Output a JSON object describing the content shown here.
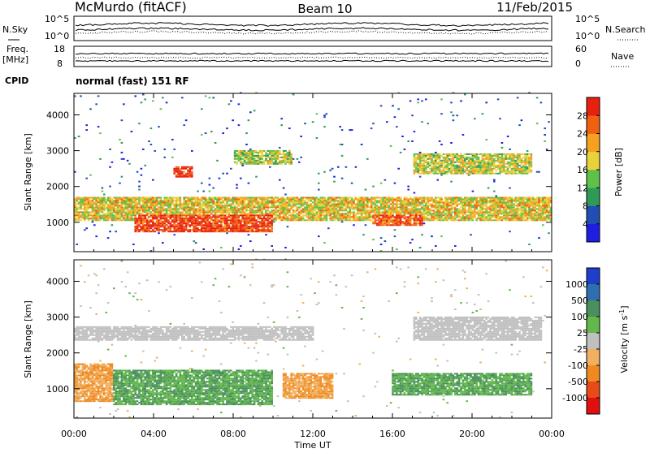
{
  "header": {
    "title": "McMurdo (fitACF)",
    "beam": "Beam 10",
    "date": "11/Feb/2015"
  },
  "top_labels": {
    "n_sky": "N.Sky",
    "n_search": "N.Search",
    "freq": "Freq.",
    "freq_unit": "[MHz]",
    "nave": "Nave",
    "cpid": "CPID",
    "cpid_value": "normal (fast) 151 RF",
    "noise_left_ticks": [
      "10^5",
      "10^0"
    ],
    "noise_right_ticks": [
      "10^5",
      "10^0"
    ],
    "freq_ticks": [
      "18",
      "8"
    ],
    "nave_ticks": [
      "60",
      "0"
    ]
  },
  "colors": {
    "power_scale": [
      "#1e1ee0",
      "#1f4fb4",
      "#2f9a58",
      "#5ec24a",
      "#e8d23a",
      "#f5a020",
      "#f06010",
      "#e82010"
    ],
    "velocity_scale": [
      "#1e3fcc",
      "#2f6fb0",
      "#4a8f5e",
      "#62b84a",
      "#c0c0c0",
      "#f0b060",
      "#f08a20",
      "#e84a18",
      "#e01010"
    ]
  },
  "chart_data": [
    {
      "type": "heatmap",
      "quantity": "Power",
      "xlabel": "",
      "ylabel": "Slant Range [km]",
      "xlim": [
        0,
        24
      ],
      "ylim": [
        180,
        4600
      ],
      "x_ticks": [
        "00:00",
        "04:00",
        "08:00",
        "12:00",
        "16:00",
        "20:00",
        "00:00"
      ],
      "y_ticks": [
        1000,
        2000,
        3000,
        4000
      ],
      "colorbar": {
        "label": "Power [dB]",
        "ticks": [
          "4",
          "8",
          "12",
          "16",
          "20",
          "24",
          "28"
        ],
        "range": [
          0,
          30
        ]
      },
      "regions": [
        {
          "x": [
            0.0,
            24.0
          ],
          "y": [
            1000,
            1700
          ],
          "level": 18
        },
        {
          "x": [
            3.0,
            10.0
          ],
          "y": [
            700,
            1200
          ],
          "level": 27
        },
        {
          "x": [
            5.0,
            6.0
          ],
          "y": [
            2250,
            2550
          ],
          "level": 28
        },
        {
          "x": [
            15.0,
            17.5
          ],
          "y": [
            900,
            1200
          ],
          "level": 26
        },
        {
          "x": [
            17.0,
            23.0
          ],
          "y": [
            2300,
            2900
          ],
          "level": 16
        },
        {
          "x": [
            8.0,
            11.0
          ],
          "y": [
            2600,
            3000
          ],
          "level": 15
        }
      ]
    },
    {
      "type": "heatmap",
      "quantity": "Velocity",
      "xlabel": "Time UT",
      "ylabel": "Slant Range [km]",
      "xlim": [
        0,
        24
      ],
      "ylim": [
        180,
        4600
      ],
      "x_ticks": [
        "00:00",
        "04:00",
        "08:00",
        "12:00",
        "16:00",
        "20:00",
        "00:00"
      ],
      "y_ticks": [
        1000,
        2000,
        3000,
        4000
      ],
      "colorbar": {
        "label": "Velocity [m s^-1]",
        "ticks": [
          "1000",
          "500",
          "100",
          "25",
          "-25",
          "-100",
          "-500",
          "-1000"
        ]
      },
      "regions": [
        {
          "x": [
            0.0,
            2.0
          ],
          "y": [
            600,
            1700
          ],
          "level": -100
        },
        {
          "x": [
            2.0,
            10.0
          ],
          "y": [
            500,
            1500
          ],
          "level": 100
        },
        {
          "x": [
            10.5,
            13.0
          ],
          "y": [
            700,
            1400
          ],
          "level": -100
        },
        {
          "x": [
            16.0,
            23.0
          ],
          "y": [
            800,
            1400
          ],
          "level": 100
        },
        {
          "x": [
            17.0,
            23.5
          ],
          "y": [
            2300,
            3000
          ],
          "level": 0
        },
        {
          "x": [
            0.0,
            12.0
          ],
          "y": [
            2300,
            2700
          ],
          "level": 0
        }
      ]
    }
  ]
}
